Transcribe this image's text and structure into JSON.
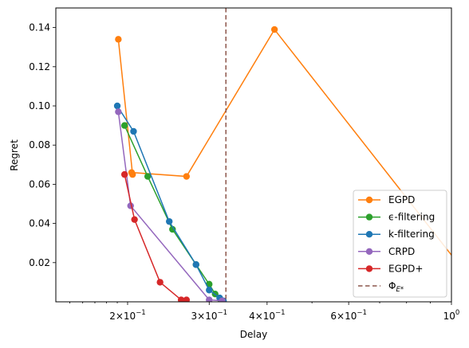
{
  "chart_data": {
    "type": "line",
    "xlabel": "Delay",
    "ylabel": "Regret",
    "xscale": "log",
    "xlim": [
      0.14,
      1.0
    ],
    "ylim": [
      0.0,
      0.15
    ],
    "grid": false,
    "legend_position": "bottom-right",
    "xticks": [
      {
        "value": 0.2,
        "base": "2",
        "exp": "-1"
      },
      {
        "value": 0.3,
        "base": "3",
        "exp": "-1"
      },
      {
        "value": 0.4,
        "base": "4",
        "exp": "-1"
      },
      {
        "value": 0.6,
        "base": "6",
        "exp": "-1"
      },
      {
        "value": 1.0,
        "base": "10",
        "exp": "0"
      }
    ],
    "yticks": [
      {
        "value": 0.02,
        "label": "0.02"
      },
      {
        "value": 0.04,
        "label": "0.04"
      },
      {
        "value": 0.06,
        "label": "0.06"
      },
      {
        "value": 0.08,
        "label": "0.08"
      },
      {
        "value": 0.1,
        "label": "0.10"
      },
      {
        "value": 0.12,
        "label": "0.12"
      },
      {
        "value": 0.14,
        "label": "0.14"
      }
    ],
    "series": [
      {
        "name": "EGPD",
        "color": "#ff7f0e",
        "marker": "circle",
        "x": [
          0.191,
          0.205,
          0.204,
          0.268,
          0.415,
          1.2
        ],
        "y": [
          0.134,
          0.065,
          0.066,
          0.064,
          0.139,
          0.0
        ]
      },
      {
        "name": "ϵ-filtering",
        "color": "#2ca02c",
        "marker": "circle",
        "x": [
          0.197,
          0.221,
          0.25,
          0.281,
          0.3,
          0.309,
          0.318
        ],
        "y": [
          0.09,
          0.064,
          0.037,
          0.019,
          0.009,
          0.004,
          0.001
        ]
      },
      {
        "name": "k-filtering",
        "color": "#1f77b4",
        "marker": "circle",
        "x": [
          0.19,
          0.206,
          0.246,
          0.281,
          0.3,
          0.316,
          0.322
        ],
        "y": [
          0.1,
          0.087,
          0.041,
          0.019,
          0.006,
          0.002,
          0.0005
        ]
      },
      {
        "name": "CRPD",
        "color": "#9467bd",
        "marker": "circle",
        "x": [
          0.191,
          0.203,
          0.3,
          0.32
        ],
        "y": [
          0.097,
          0.049,
          0.001,
          0.0005
        ]
      },
      {
        "name": "EGPD+",
        "color": "#d62728",
        "marker": "circle",
        "x": [
          0.197,
          0.207,
          0.235,
          0.261,
          0.268
        ],
        "y": [
          0.065,
          0.042,
          0.01,
          0.001,
          0.001
        ]
      }
    ],
    "vline": {
      "x": 0.326,
      "color": "#8c564b",
      "style": "dashed",
      "label_base": "Φ",
      "label_sub": "E*"
    }
  }
}
